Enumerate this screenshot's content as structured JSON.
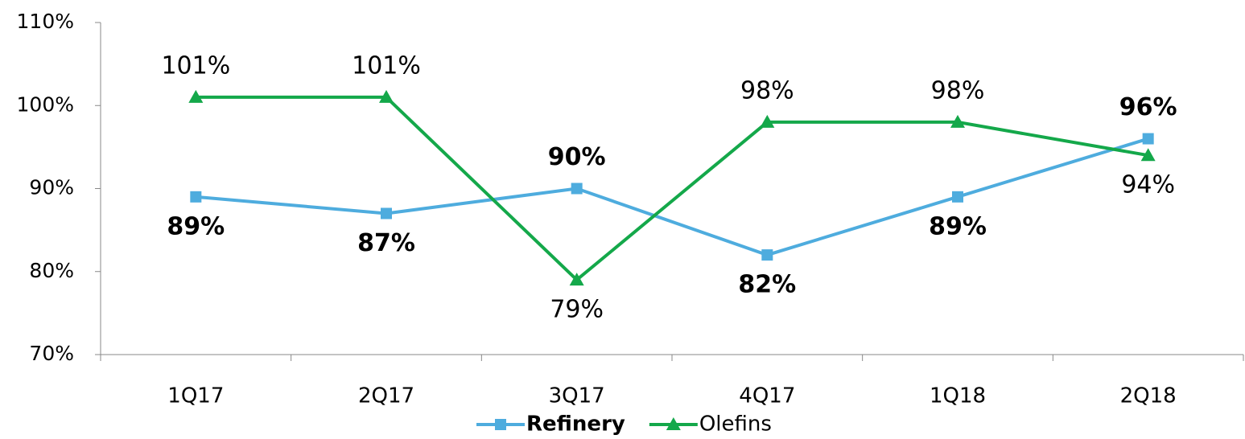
{
  "chart_data": {
    "type": "line",
    "categories": [
      "1Q17",
      "2Q17",
      "3Q17",
      "4Q17",
      "1Q18",
      "2Q18"
    ],
    "series": [
      {
        "name": "Refinery",
        "color": "#4eacde",
        "marker": "square",
        "bold_labels": true,
        "values": [
          89,
          87,
          90,
          82,
          89,
          96
        ],
        "value_labels": [
          "89%",
          "87%",
          "90%",
          "82%",
          "89%",
          "96%"
        ]
      },
      {
        "name": "Olefins",
        "color": "#14a84a",
        "marker": "triangle",
        "bold_labels": false,
        "values": [
          101,
          101,
          79,
          98,
          98,
          94
        ],
        "value_labels": [
          "101%",
          "101%",
          "79%",
          "98%",
          "98%",
          "94%"
        ]
      }
    ],
    "ylim": [
      70,
      110
    ],
    "yticks": [
      {
        "value": 70,
        "label": "70%"
      },
      {
        "value": 80,
        "label": "80%"
      },
      {
        "value": 90,
        "label": "90%"
      },
      {
        "value": 100,
        "label": "100%"
      },
      {
        "value": 110,
        "label": "110%"
      }
    ],
    "grid": false,
    "legend": "bottom"
  }
}
